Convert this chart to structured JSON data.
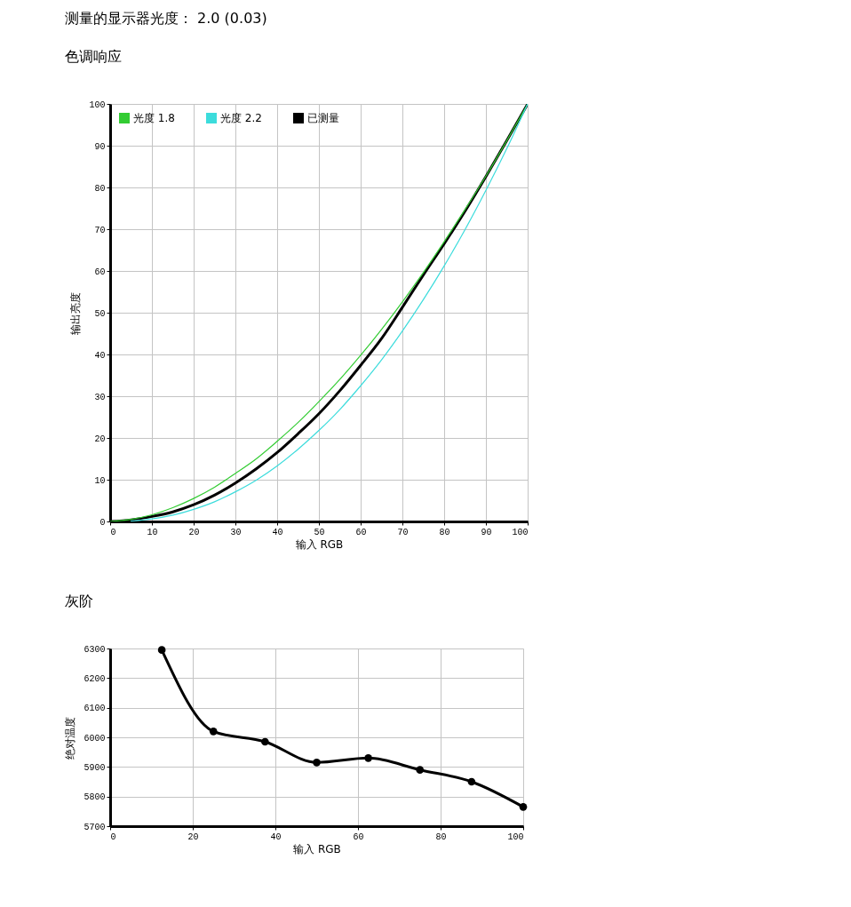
{
  "chart_data": [
    {
      "type": "line",
      "title": "色调响应",
      "annotations": [
        "测量的显示器光度： 2.0 (0.03)"
      ],
      "xlabel": "输入 RGB",
      "ylabel": "输出亮度",
      "x": [
        0,
        5,
        10,
        15,
        20,
        25,
        30,
        35,
        40,
        45,
        50,
        55,
        60,
        65,
        70,
        75,
        80,
        85,
        90,
        95,
        100
      ],
      "series": [
        {
          "name": "光度 1.8",
          "color": "#33cc33",
          "values": [
            0,
            0.5,
            1.6,
            3.3,
            5.5,
            8.2,
            11.5,
            15,
            19.2,
            23.7,
            28.7,
            34,
            39.8,
            46,
            52.6,
            59.6,
            67,
            74.7,
            82.7,
            91.2,
            100
          ]
        },
        {
          "name": "光度 2.2",
          "color": "#3cdcdc",
          "values": [
            null,
            0.1,
            0.6,
            1.5,
            2.9,
            4.7,
            7.1,
            9.9,
            13.3,
            17.3,
            21.8,
            26.8,
            32.5,
            38.7,
            45.6,
            53.1,
            61.2,
            69.9,
            79.3,
            89.3,
            100
          ]
        },
        {
          "name": "已测量",
          "color": "#000000",
          "values": [
            0,
            0.4,
            1.2,
            2.3,
            4,
            6.3,
            9.2,
            12.6,
            16.5,
            21,
            25.8,
            31.3,
            37.4,
            43.8,
            51.3,
            59,
            66.5,
            74.3,
            82.6,
            91.2,
            100
          ]
        }
      ],
      "xlim": [
        0,
        100
      ],
      "ylim": [
        0,
        100
      ],
      "xticks": [
        0,
        10,
        20,
        30,
        40,
        50,
        60,
        70,
        80,
        90,
        100
      ],
      "yticks": [
        0,
        10,
        20,
        30,
        40,
        50,
        60,
        70,
        80,
        90,
        100
      ],
      "grid": true,
      "legend": "top left"
    },
    {
      "type": "line",
      "title": "灰阶",
      "xlabel": "输入 RGB",
      "ylabel": "绝对温度",
      "x": [
        12.5,
        25,
        37.5,
        50,
        62.5,
        75,
        87.5,
        100
      ],
      "series": [
        {
          "color": "#000000",
          "values": [
            6295,
            6020,
            5985,
            5915,
            5930,
            5890,
            5850,
            5765
          ]
        }
      ],
      "xlim": [
        0,
        100
      ],
      "ylim": [
        5700,
        6300
      ],
      "xticks": [
        0,
        20,
        40,
        60,
        80,
        100
      ],
      "yticks": [
        5700,
        5800,
        5900,
        6000,
        6100,
        6200,
        6300
      ],
      "grid": true,
      "marker": "circle"
    }
  ]
}
